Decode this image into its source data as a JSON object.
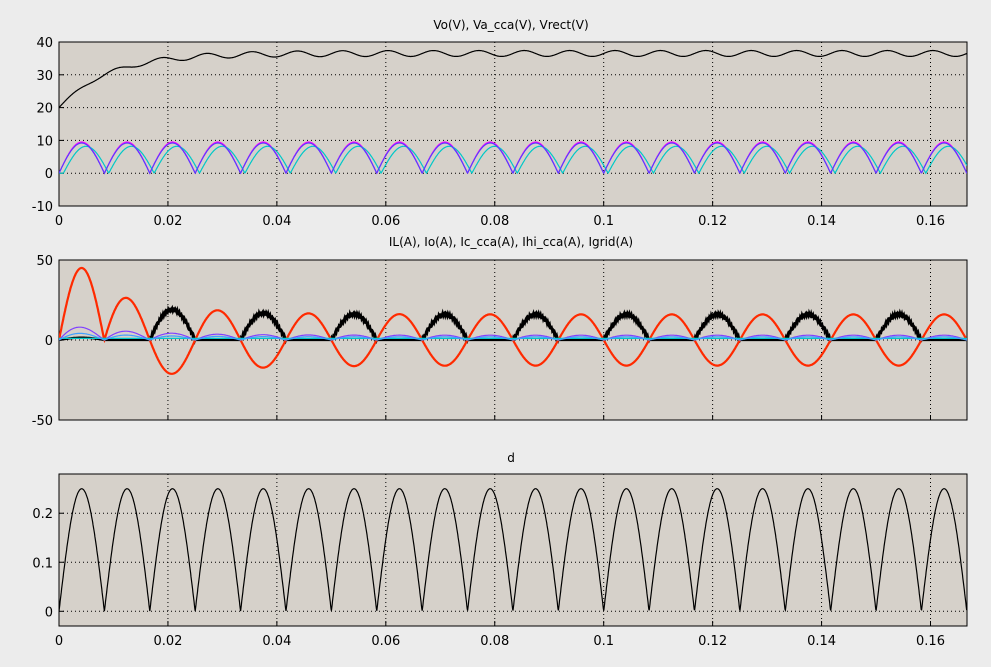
{
  "colors": {
    "background": "#ececec",
    "plot_bg": "#d6d1ca",
    "black": "#000000",
    "magenta": "#ff00ff",
    "cyan": "#00c8c8",
    "blue": "#5a3cff",
    "red": "#ff2a00",
    "purple": "#8040ff",
    "light_blue": "#40a0ff"
  },
  "chart_data": [
    {
      "type": "line",
      "title": "Vo(V), Va_cca(V), Vrect(V)",
      "xlim": [
        0,
        0.1667
      ],
      "ylim": [
        -10,
        40
      ],
      "xticks": [
        0,
        0.02,
        0.04,
        0.06,
        0.08,
        0.1,
        0.12,
        0.14,
        0.16
      ],
      "xtick_labels": [
        "0",
        "0.02",
        "0.04",
        "0.06",
        "0.08",
        "0.1",
        "0.12",
        "0.14",
        "0.16"
      ],
      "yticks": [
        -10,
        0,
        10,
        20,
        30,
        40
      ],
      "ytick_labels": [
        "-10",
        "0",
        "10",
        "20",
        "30",
        "40"
      ],
      "grid": true,
      "series": [
        {
          "color": "#000000",
          "kind": "vo",
          "steady": 36.5,
          "start": 20
        },
        {
          "color": "#ff00ff",
          "kind": "rect",
          "amplitude": 9.5,
          "freq_hz": 60
        },
        {
          "color": "#00c8c8",
          "kind": "rect",
          "amplitude": 8.2,
          "freq_hz": 60,
          "phase_lag_s": 0.0008
        },
        {
          "color": "#5a3cff",
          "kind": "rect",
          "amplitude": 9.2,
          "freq_hz": 60
        }
      ]
    },
    {
      "type": "line",
      "title": "IL(A), Io(A), Ic_cca(A), Ihi_cca(A), Igrid(A)",
      "xlim": [
        0,
        0.1667
      ],
      "ylim": [
        -50,
        50
      ],
      "xticks": [
        0,
        0.02,
        0.04,
        0.06,
        0.08,
        0.1,
        0.12,
        0.14,
        0.16
      ],
      "yticks": [
        -50,
        0,
        50
      ],
      "ytick_labels": [
        "-50",
        "0",
        "50"
      ],
      "grid": true,
      "series": [
        {
          "color": "#000000",
          "kind": "il",
          "peak_start": 33,
          "peak_steady": 16
        },
        {
          "color": "#ff2a00",
          "kind": "ic",
          "peak_start": 45,
          "peak_steady": 16
        },
        {
          "color": "#8040ff",
          "kind": "small",
          "peak_start": 10,
          "peak_steady": 3
        },
        {
          "color": "#00c8c8",
          "kind": "flat",
          "value": 1
        },
        {
          "color": "#40a0ff",
          "kind": "small",
          "peak_start": 5,
          "peak_steady": 2
        }
      ]
    },
    {
      "type": "line",
      "title": "d",
      "xlim": [
        0,
        0.1667
      ],
      "ylim": [
        -0.03,
        0.28
      ],
      "xticks": [
        0,
        0.02,
        0.04,
        0.06,
        0.08,
        0.1,
        0.12,
        0.14,
        0.16
      ],
      "xtick_labels": [
        "0",
        "0.02",
        "0.04",
        "0.06",
        "0.08",
        "0.1",
        "0.12",
        "0.14",
        "0.16"
      ],
      "yticks": [
        0,
        0.1,
        0.2
      ],
      "ytick_labels": [
        "0",
        "0.1",
        "0.2"
      ],
      "grid": true,
      "series": [
        {
          "color": "#000000",
          "kind": "rect",
          "amplitude": 0.25,
          "freq_hz": 60
        }
      ]
    }
  ]
}
